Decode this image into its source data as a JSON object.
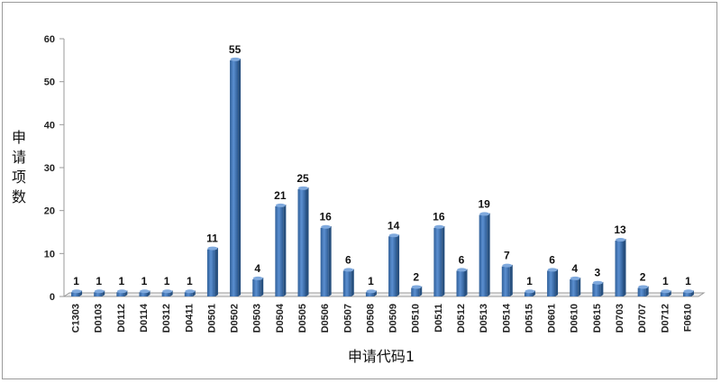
{
  "chart_data": {
    "type": "bar",
    "xlabel": "申请代码1",
    "ylabel": "申请项数",
    "ylim": [
      0,
      60
    ],
    "yticks": [
      0,
      10,
      20,
      30,
      40,
      50,
      60
    ],
    "grid": false,
    "legend": "none",
    "bar_color": "#4a7ebb",
    "categories": [
      "C1303",
      "D0103",
      "D0112",
      "D0114",
      "D0312",
      "D0411",
      "D0501",
      "D0502",
      "D0503",
      "D0504",
      "D0505",
      "D0506",
      "D0507",
      "D0508",
      "D0509",
      "D0510",
      "D0511",
      "D0512",
      "D0513",
      "D0514",
      "D0515",
      "D0601",
      "D0610",
      "D0615",
      "D0703",
      "D0707",
      "D0712",
      "F0610"
    ],
    "values": [
      1,
      1,
      1,
      1,
      1,
      1,
      11,
      55,
      4,
      21,
      25,
      16,
      6,
      1,
      14,
      2,
      16,
      6,
      19,
      7,
      1,
      6,
      4,
      3,
      13,
      2,
      1,
      1
    ]
  }
}
